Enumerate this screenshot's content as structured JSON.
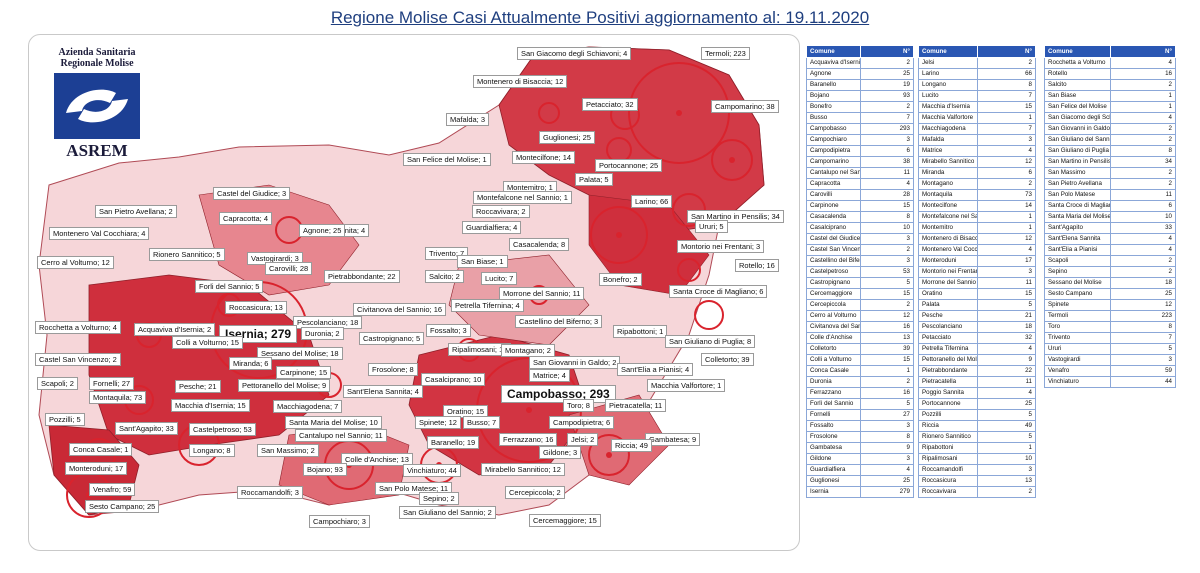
{
  "title": "Regione Molise Casi Attualmente Positivi aggiornamento al: 19.11.2020",
  "logo": {
    "line1": "Azienda Sanitaria",
    "line2": "Regionale Molise",
    "name": "ASREM"
  },
  "colors": {
    "header": "#2a57b3",
    "title": "#1f3f7f",
    "circle": "#d9232d",
    "high": "#c41e2a",
    "mid": "#e06a74",
    "low": "#f4c4c9",
    "zero": "#ffffff"
  },
  "labels": [
    {
      "text": "San Giacomo degli Schiavoni; 4",
      "big": false
    },
    {
      "text": "Termoli; 223",
      "big": false
    },
    {
      "text": "Montenero di Bisaccia; 12",
      "big": false
    },
    {
      "text": "Petacciato; 32",
      "big": false
    },
    {
      "text": "Campomarino; 38",
      "big": false
    },
    {
      "text": "Mafalda; 3",
      "big": false
    },
    {
      "text": "Guglionesi; 25",
      "big": false
    },
    {
      "text": "Montecilfone; 14",
      "big": false
    },
    {
      "text": "Portocannone; 25",
      "big": false
    },
    {
      "text": "San Felice del Molise; 1",
      "big": false
    },
    {
      "text": "Palata; 5",
      "big": false
    },
    {
      "text": "Montemitro; 1",
      "big": false
    },
    {
      "text": "Montefalcone nel Sannio; 1",
      "big": false
    },
    {
      "text": "Larino; 66",
      "big": false
    },
    {
      "text": "San Martino in Pensilis; 34",
      "big": false
    },
    {
      "text": "Castel del Giudice; 3",
      "big": false
    },
    {
      "text": "Roccavivara; 2",
      "big": false
    },
    {
      "text": "Ururi; 5",
      "big": false
    },
    {
      "text": "San Pietro Avellana; 2",
      "big": false
    },
    {
      "text": "Capracotta; 4",
      "big": false
    },
    {
      "text": "Guardialfiera; 4",
      "big": false
    },
    {
      "text": "Poggio Sannita; 4",
      "big": false
    },
    {
      "text": "Agnone; 25",
      "big": false
    },
    {
      "text": "Montenero Val Cocchiara; 4",
      "big": false
    },
    {
      "text": "Casacalenda; 8",
      "big": false
    },
    {
      "text": "Montorio nei Frentani; 3",
      "big": false
    },
    {
      "text": "Rionero Sannitico; 5",
      "big": false
    },
    {
      "text": "Vastogirardi; 3",
      "big": false
    },
    {
      "text": "Trivento; 7",
      "big": false
    },
    {
      "text": "Cerro al Volturno; 12",
      "big": false
    },
    {
      "text": "Carovilli; 28",
      "big": false
    },
    {
      "text": "San Biase; 1",
      "big": false
    },
    {
      "text": "Rotello; 16",
      "big": false
    },
    {
      "text": "Forli del Sannio; 5",
      "big": false
    },
    {
      "text": "Pietrabbondante; 22",
      "big": false
    },
    {
      "text": "Salcito; 2",
      "big": false
    },
    {
      "text": "Lucito; 7",
      "big": false
    },
    {
      "text": "Bonefro; 2",
      "big": false
    },
    {
      "text": "Roccasicura; 13",
      "big": false
    },
    {
      "text": "Santa Croce di Magliano; 6",
      "big": false
    },
    {
      "text": "Pescolanciano; 18",
      "big": false
    },
    {
      "text": "Morrone del Sannio; 11",
      "big": false
    },
    {
      "text": "Rocchetta a Volturno; 4",
      "big": false
    },
    {
      "text": "Civitanova del Sannio; 16",
      "big": false
    },
    {
      "text": "Petrella Tifernina; 4",
      "big": false
    },
    {
      "text": "Acquaviva d'Isernia; 2",
      "big": false
    },
    {
      "text": "Isernia; 279",
      "big": true
    },
    {
      "text": "Duronia; 2",
      "big": false
    },
    {
      "text": "Castellino del Biferno; 3",
      "big": false
    },
    {
      "text": "Colli a Volturno; 15",
      "big": false
    },
    {
      "text": "Fossalto; 3",
      "big": false
    },
    {
      "text": "Ripabottoni; 1",
      "big": false
    },
    {
      "text": "San Giuliano di Puglia; 8",
      "big": false
    },
    {
      "text": "Castropignano; 5",
      "big": false
    },
    {
      "text": "Castel San Vincenzo; 2",
      "big": false
    },
    {
      "text": "Sessano del Molise; 18",
      "big": false
    },
    {
      "text": "Ripalimosani; 10",
      "big": false
    },
    {
      "text": "Montagano; 2",
      "big": false
    },
    {
      "text": "San Giovanni in Galdo; 2",
      "big": false
    },
    {
      "text": "Colletorto; 39",
      "big": false
    },
    {
      "text": "Miranda; 6",
      "big": false
    },
    {
      "text": "Sant'Elia a Pianisi; 4",
      "big": false
    },
    {
      "text": "Frosolone; 8",
      "big": false
    },
    {
      "text": "Carpinone; 15",
      "big": false
    },
    {
      "text": "Casalciprano; 10",
      "big": false
    },
    {
      "text": "Matrice; 4",
      "big": false
    },
    {
      "text": "Scapoli; 2",
      "big": false
    },
    {
      "text": "Fornelli; 27",
      "big": false
    },
    {
      "text": "Macchia Valfortore; 1",
      "big": false
    },
    {
      "text": "Pesche; 21",
      "big": false
    },
    {
      "text": "Pettoranello del Molise; 9",
      "big": false
    },
    {
      "text": "Campobasso; 293",
      "big": true
    },
    {
      "text": "Montaquila; 73",
      "big": false
    },
    {
      "text": "Sant'Elena Sannita; 4",
      "big": false
    },
    {
      "text": "Toro; 8",
      "big": false
    },
    {
      "text": "Pietracatella; 11",
      "big": false
    },
    {
      "text": "Pozzilli; 5",
      "big": false
    },
    {
      "text": "Macchia d'Isernia; 15",
      "big": false
    },
    {
      "text": "Macchiagodena; 7",
      "big": false
    },
    {
      "text": "Oratino; 15",
      "big": false
    },
    {
      "text": "Santa Maria del Molise; 10",
      "big": false
    },
    {
      "text": "Spinete; 12",
      "big": false
    },
    {
      "text": "Busso; 7",
      "big": false
    },
    {
      "text": "Campodipietra; 6",
      "big": false
    },
    {
      "text": "Sant'Agapito; 33",
      "big": false
    },
    {
      "text": "Castelpetroso; 53",
      "big": false
    },
    {
      "text": "Cantalupo nel Sannio; 11",
      "big": false
    },
    {
      "text": "Ferrazzano; 16",
      "big": false
    },
    {
      "text": "Jelsi; 2",
      "big": false
    },
    {
      "text": "Gambatesa; 9",
      "big": false
    },
    {
      "text": "Longano; 8",
      "big": false
    },
    {
      "text": "Baranello; 19",
      "big": false
    },
    {
      "text": "Gildone; 3",
      "big": false
    },
    {
      "text": "Conca Casale; 1",
      "big": false
    },
    {
      "text": "San Massimo; 2",
      "big": false
    },
    {
      "text": "Colle d'Anchise; 13",
      "big": false
    },
    {
      "text": "Monteroduni; 17",
      "big": false
    },
    {
      "text": "Bojano; 93",
      "big": false
    },
    {
      "text": "Vinchiaturo; 44",
      "big": false
    },
    {
      "text": "Mirabello Sannitico; 12",
      "big": false
    },
    {
      "text": "Riccia; 49",
      "big": false
    },
    {
      "text": "Venafro; 59",
      "big": false
    },
    {
      "text": "Roccamandolfi; 3",
      "big": false
    },
    {
      "text": "San Polo Matese; 11",
      "big": false
    },
    {
      "text": "Cercepiccola; 2",
      "big": false
    },
    {
      "text": "Sesto Campano; 25",
      "big": false
    },
    {
      "text": "Sepino; 2",
      "big": false
    },
    {
      "text": "San Giuliano del Sannio; 2",
      "big": false
    },
    {
      "text": "Campochiaro; 3",
      "big": false
    },
    {
      "text": "Cercemaggiore; 15",
      "big": false
    }
  ],
  "tables": [
    {
      "header": {
        "comune": "Comune",
        "n": "N°"
      },
      "rows": [
        [
          "Acquaviva d'Isernia",
          "2"
        ],
        [
          "Agnone",
          "25"
        ],
        [
          "Baranello",
          "19"
        ],
        [
          "Bojano",
          "93"
        ],
        [
          "Bonefro",
          "2"
        ],
        [
          "Busso",
          "7"
        ],
        [
          "Campobasso",
          "293"
        ],
        [
          "Campochiaro",
          "3"
        ],
        [
          "Campodipietra",
          "6"
        ],
        [
          "Campomarino",
          "38"
        ],
        [
          "Cantalupo nel Sannio",
          "11"
        ],
        [
          "Capracotta",
          "4"
        ],
        [
          "Carovilli",
          "28"
        ],
        [
          "Carpinone",
          "15"
        ],
        [
          "Casacalenda",
          "8"
        ],
        [
          "Casalciprano",
          "10"
        ],
        [
          "Castel del Giudice",
          "3"
        ],
        [
          "Castel San Vincenzo",
          "2"
        ],
        [
          "Castellino del Biferno",
          "3"
        ],
        [
          "Castelpetroso",
          "53"
        ],
        [
          "Castropignano",
          "5"
        ],
        [
          "Cercemaggiore",
          "15"
        ],
        [
          "Cercepiccola",
          "2"
        ],
        [
          "Cerro al Volturno",
          "12"
        ],
        [
          "Civitanova del Sannio",
          "16"
        ],
        [
          "Colle d'Anchise",
          "13"
        ],
        [
          "Colletorto",
          "39"
        ],
        [
          "Colli a Volturno",
          "15"
        ],
        [
          "Conca Casale",
          "1"
        ],
        [
          "Duronia",
          "2"
        ],
        [
          "Ferrazzano",
          "16"
        ],
        [
          "Forlì del Sannio",
          "5"
        ],
        [
          "Fornelli",
          "27"
        ],
        [
          "Fossalto",
          "3"
        ],
        [
          "Frosolone",
          "8"
        ],
        [
          "Gambatesa",
          "9"
        ],
        [
          "Gildone",
          "3"
        ],
        [
          "Guardialfiera",
          "4"
        ],
        [
          "Guglionesi",
          "25"
        ],
        [
          "Isernia",
          "279"
        ]
      ]
    },
    {
      "header": {
        "comune": "Comune",
        "n": "N°"
      },
      "rows": [
        [
          "Jelsi",
          "2"
        ],
        [
          "Larino",
          "66"
        ],
        [
          "Longano",
          "8"
        ],
        [
          "Lucito",
          "7"
        ],
        [
          "Macchia d'Isernia",
          "15"
        ],
        [
          "Macchia Valfortore",
          "1"
        ],
        [
          "Macchiagodena",
          "7"
        ],
        [
          "Mafalda",
          "3"
        ],
        [
          "Matrice",
          "4"
        ],
        [
          "Mirabello Sannitico",
          "12"
        ],
        [
          "Miranda",
          "6"
        ],
        [
          "Montagano",
          "2"
        ],
        [
          "Montaquila",
          "73"
        ],
        [
          "Montecilfone",
          "14"
        ],
        [
          "Montefalcone nel Sannio",
          "1"
        ],
        [
          "Montemitro",
          "1"
        ],
        [
          "Montenero di Bisaccia",
          "12"
        ],
        [
          "Montenero Val Cocchiara",
          "4"
        ],
        [
          "Monteroduni",
          "17"
        ],
        [
          "Montorio nei Frentani",
          "3"
        ],
        [
          "Morrone del Sannio",
          "11"
        ],
        [
          "Oratino",
          "15"
        ],
        [
          "Palata",
          "5"
        ],
        [
          "Pesche",
          "21"
        ],
        [
          "Pescolanciano",
          "18"
        ],
        [
          "Petacciato",
          "32"
        ],
        [
          "Petrella Tifernina",
          "4"
        ],
        [
          "Pettoranello del Molise",
          "9"
        ],
        [
          "Pietrabbondante",
          "22"
        ],
        [
          "Pietracatella",
          "11"
        ],
        [
          "Poggio Sannita",
          "4"
        ],
        [
          "Portocannone",
          "25"
        ],
        [
          "Pozzilli",
          "5"
        ],
        [
          "Riccia",
          "49"
        ],
        [
          "Rionero Sannitico",
          "5"
        ],
        [
          "Ripabottoni",
          "1"
        ],
        [
          "Ripalimosani",
          "10"
        ],
        [
          "Roccamandolfi",
          "3"
        ],
        [
          "Roccasicura",
          "13"
        ],
        [
          "Roccavivara",
          "2"
        ]
      ]
    },
    {
      "header": {
        "comune": "Comune",
        "n": "N°"
      },
      "rows": [
        [
          "Rocchetta a Volturno",
          "4"
        ],
        [
          "Rotello",
          "16"
        ],
        [
          "Salcito",
          "2"
        ],
        [
          "San Biase",
          "1"
        ],
        [
          "San Felice del Molise",
          "1"
        ],
        [
          "San Giacomo degli Schiavoni",
          "4"
        ],
        [
          "San Giovanni in Galdo",
          "2"
        ],
        [
          "San Giuliano del Sannio",
          "2"
        ],
        [
          "San Giuliano di Puglia",
          "8"
        ],
        [
          "San Martino in Pensilis",
          "34"
        ],
        [
          "San Massimo",
          "2"
        ],
        [
          "San Pietro Avellana",
          "2"
        ],
        [
          "San Polo Matese",
          "11"
        ],
        [
          "Santa Croce di Magliano",
          "6"
        ],
        [
          "Santa Maria del Molise",
          "10"
        ],
        [
          "Sant'Agapito",
          "33"
        ],
        [
          "Sant'Elena Sannita",
          "4"
        ],
        [
          "Sant'Elia a Pianisi",
          "4"
        ],
        [
          "Scapoli",
          "2"
        ],
        [
          "Sepino",
          "2"
        ],
        [
          "Sessano del Molise",
          "18"
        ],
        [
          "Sesto Campano",
          "25"
        ],
        [
          "Spinete",
          "12"
        ],
        [
          "Termoli",
          "223"
        ],
        [
          "Toro",
          "8"
        ],
        [
          "Trivento",
          "7"
        ],
        [
          "Ururi",
          "5"
        ],
        [
          "Vastogirardi",
          "3"
        ],
        [
          "Venafro",
          "59"
        ],
        [
          "Vinchiaturo",
          "44"
        ]
      ]
    }
  ]
}
